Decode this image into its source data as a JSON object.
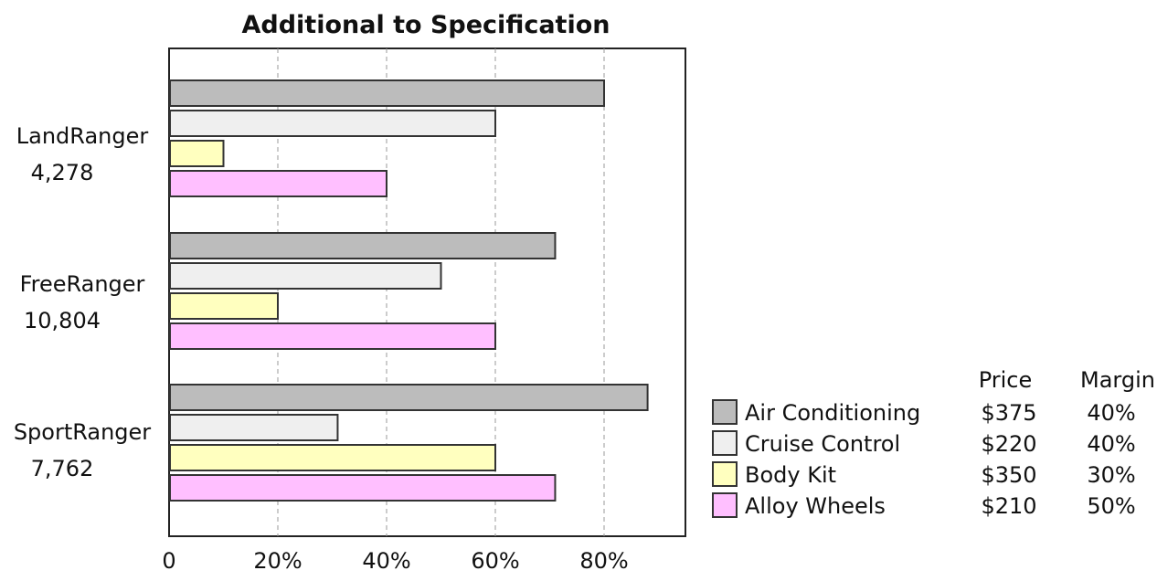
{
  "chart_data": {
    "type": "bar",
    "orientation": "horizontal",
    "title": "Additional to Specification",
    "categories": [
      "LandRanger",
      "FreeRanger",
      "SportRanger"
    ],
    "category_values": [
      "4,278",
      "10,804",
      "7,762"
    ],
    "xlim": [
      0,
      0.95
    ],
    "x_ticks": [
      0,
      0.2,
      0.4,
      0.6,
      0.8
    ],
    "x_tick_labels": [
      "0",
      "20%",
      "40%",
      "60%",
      "80%"
    ],
    "grid": "vertical dashed",
    "series": [
      {
        "name": "Air Conditioning",
        "color": "#bcbcbc",
        "values": [
          0.8,
          0.71,
          0.88
        ],
        "price": "$375",
        "margin": "40%"
      },
      {
        "name": "Cruise Control",
        "color": "#efefef",
        "values": [
          0.6,
          0.5,
          0.31
        ],
        "price": "$220",
        "margin": "40%"
      },
      {
        "name": "Body Kit",
        "color": "#ffffbf",
        "values": [
          0.1,
          0.2,
          0.6
        ],
        "price": "$350",
        "margin": "30%"
      },
      {
        "name": "Alloy Wheels",
        "color": "#ffbfff",
        "values": [
          0.4,
          0.6,
          0.71
        ],
        "price": "$210",
        "margin": "50%"
      }
    ],
    "legend": {
      "position": "bottom-right",
      "price_header": "Price",
      "margin_header": "Margin"
    }
  }
}
